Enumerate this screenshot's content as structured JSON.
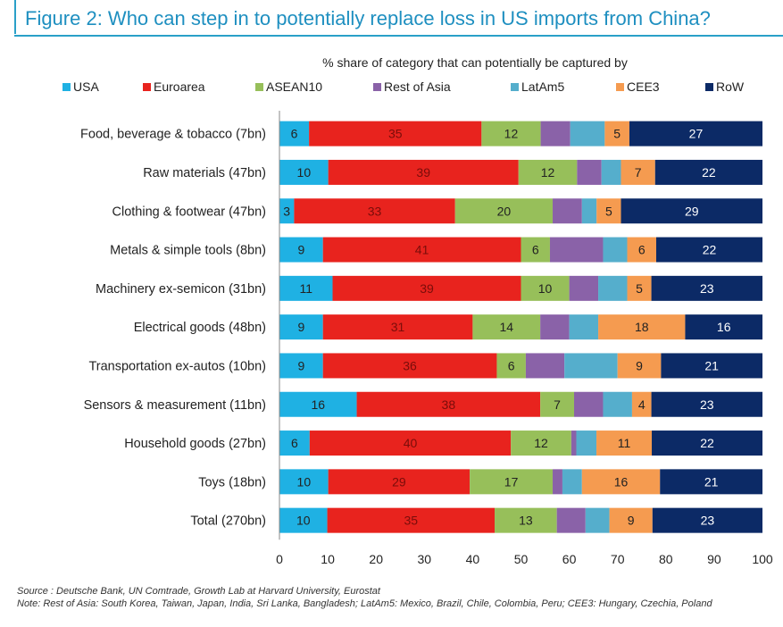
{
  "title": "Figure 2: Who can step in to potentially replace loss in US imports from China?",
  "source_note": "Source : Deutsche Bank, UN Comtrade, Growth Lab at Harvard University, Eurostat",
  "footnote": "Note: Rest of Asia: South Korea, Taiwan, Japan, India, Sri Lanka, Bangladesh; LatAm5: Mexico, Brazil, Chile, Colombia, Peru; CEE3: Hungary, Czechia, Poland",
  "chart_data": {
    "type": "bar",
    "orientation": "horizontal",
    "stacked": true,
    "subtitle": "% share of category that can potentially be captured by",
    "categories": [
      "Food, beverage & tobacco (7bn)",
      "Raw materials (47bn)",
      "Clothing & footwear (47bn)",
      "Metals & simple tools (8bn)",
      "Machinery ex-semicon (31bn)",
      "Electrical goods (48bn)",
      "Transportation ex-autos (10bn)",
      "Sensors & measurement (11bn)",
      "Household goods (27bn)",
      "Toys (18bn)",
      "Total (270bn)"
    ],
    "series": [
      {
        "name": "USA",
        "color": "#1fb1e3",
        "values": [
          6,
          10,
          3,
          9,
          11,
          9,
          9,
          16,
          6,
          10,
          10
        ]
      },
      {
        "name": "Euroarea",
        "color": "#e8231e",
        "values": [
          35,
          39,
          33,
          41,
          39,
          31,
          36,
          38,
          40,
          29,
          35
        ]
      },
      {
        "name": "ASEAN10",
        "color": "#97bf5a",
        "values": [
          12,
          12,
          20,
          6,
          10,
          14,
          6,
          7,
          12,
          17,
          13
        ]
      },
      {
        "name": "Rest of Asia",
        "color": "#8a62a8",
        "values": [
          6,
          5,
          6,
          11,
          6,
          6,
          8,
          6,
          1,
          2,
          6
        ]
      },
      {
        "name": "LatAm5",
        "color": "#55aecc",
        "values": [
          7,
          4,
          3,
          5,
          6,
          6,
          11,
          6,
          4,
          4,
          5
        ]
      },
      {
        "name": "CEE3",
        "color": "#f59b50",
        "values": [
          5,
          7,
          5,
          6,
          5,
          18,
          9,
          4,
          11,
          16,
          9
        ]
      },
      {
        "name": "RoW",
        "color": "#0c2a66",
        "values": [
          27,
          22,
          29,
          22,
          23,
          16,
          21,
          23,
          22,
          21,
          23
        ]
      }
    ],
    "data_labels": [
      [
        "6",
        "35",
        "12",
        "",
        "",
        "5",
        "27"
      ],
      [
        "10",
        "39",
        "12",
        "",
        "",
        "7",
        "22"
      ],
      [
        "3",
        "33",
        "20",
        "",
        "",
        "5",
        "29"
      ],
      [
        "9",
        "41",
        "6",
        "",
        "",
        "6",
        "22"
      ],
      [
        "11",
        "39",
        "10",
        "",
        "",
        "5",
        "23"
      ],
      [
        "9",
        "31",
        "14",
        "",
        "",
        "18",
        "16"
      ],
      [
        "9",
        "36",
        "6",
        "",
        "",
        "9",
        "21"
      ],
      [
        "16",
        "38",
        "7",
        "",
        "",
        "4",
        "23"
      ],
      [
        "6",
        "40",
        "12",
        "",
        "",
        "11",
        "22"
      ],
      [
        "10",
        "29",
        "17",
        "",
        "",
        "16",
        "21"
      ],
      [
        "10",
        "35",
        "13",
        "",
        "",
        "9",
        "23"
      ]
    ],
    "xlim": [
      0,
      100
    ],
    "xticks": [
      "0",
      "10",
      "20",
      "30",
      "40",
      "50",
      "60",
      "70",
      "80",
      "90",
      "100"
    ],
    "legend_position": "top",
    "grid": false
  }
}
